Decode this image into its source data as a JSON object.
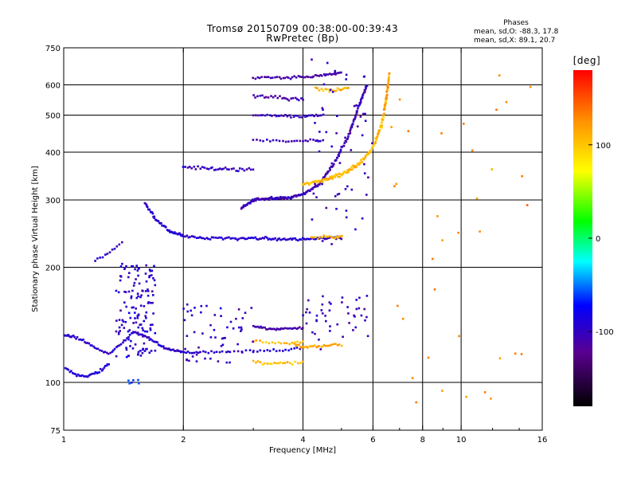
{
  "title_line1": "Tromsø 20150709 00:38:00-00:39:43",
  "title_line2": "RwPretec (Bp)",
  "phases": {
    "title": "Phases",
    "line_o": "mean, sd,O: -88.3, 17.8",
    "line_x": "mean, sd,X:  89.1, 20.7"
  },
  "colorbar": {
    "unit": "[deg]",
    "min": -180,
    "max": 180,
    "ticks": [
      {
        "value": 100,
        "label": "100"
      },
      {
        "value": 0,
        "label": "0"
      },
      {
        "value": -100,
        "label": "-100"
      }
    ]
  },
  "chart_data": {
    "type": "scatter",
    "x_scale": "log",
    "y_scale": "log",
    "xlabel": "Frequency [MHz]",
    "ylabel": "Stationary phase Virtual Height [km]",
    "xlim": [
      1,
      16
    ],
    "ylim": [
      75,
      750
    ],
    "grid": true,
    "x_ticks": [
      {
        "value": 1,
        "label": "1",
        "grid": false
      },
      {
        "value": 2,
        "label": "2",
        "grid": true
      },
      {
        "value": 4,
        "label": "4",
        "grid": true
      },
      {
        "value": 6,
        "label": "6",
        "grid": true
      },
      {
        "value": 8,
        "label": "8",
        "grid": true
      },
      {
        "value": 10,
        "label": "10",
        "grid": true
      },
      {
        "value": 16,
        "label": "16",
        "grid": false
      }
    ],
    "y_ticks": [
      {
        "value": 75,
        "label": "75",
        "grid": false
      },
      {
        "value": 100,
        "label": "100",
        "grid": true
      },
      {
        "value": 200,
        "label": "200",
        "grid": true
      },
      {
        "value": 300,
        "label": "300",
        "grid": true
      },
      {
        "value": 400,
        "label": "400",
        "grid": true
      },
      {
        "value": 500,
        "label": "500",
        "grid": true
      },
      {
        "value": 600,
        "label": "600",
        "grid": true
      },
      {
        "value": 750,
        "label": "750",
        "grid": false
      }
    ],
    "traces": [
      {
        "kind": "curve",
        "x": [
          1.0,
          1.05,
          1.12,
          1.2,
          1.3,
          1.4,
          1.5,
          1.6,
          1.7,
          1.8,
          1.9,
          2.0,
          2.2,
          2.5,
          3.0,
          3.5,
          4.0
        ],
        "y": [
          133,
          132,
          129,
          123,
          119,
          126,
          136,
          132,
          127,
          123,
          121,
          120,
          120,
          120,
          121,
          121,
          123
        ],
        "phase": -95,
        "n": 130,
        "jitter": 0.01
      },
      {
        "kind": "curve",
        "x": [
          1.0,
          1.05,
          1.1,
          1.15,
          1.2,
          1.25,
          1.3
        ],
        "y": [
          110,
          106,
          104,
          104,
          106,
          108,
          112
        ],
        "phase": -90,
        "n": 35,
        "jitter": 0.012
      },
      {
        "kind": "curve",
        "x": [
          3.8,
          4.0,
          4.3,
          4.6,
          5.0
        ],
        "y": [
          126,
          124,
          124,
          125,
          125
        ],
        "phase": 115,
        "n": 30,
        "jitter": 0.015
      },
      {
        "kind": "cloud",
        "x": [
          1.35,
          1.7
        ],
        "y": [
          115,
          205
        ],
        "phase": -95,
        "n": 140
      },
      {
        "kind": "cloud",
        "x": [
          1.45,
          1.55
        ],
        "y": [
          98,
          103
        ],
        "phase": -60,
        "n": 6
      },
      {
        "kind": "curve",
        "x": [
          1.6,
          1.7,
          1.85,
          2.0,
          2.3,
          2.7,
          3.1,
          3.5,
          4.0,
          4.5,
          5.0
        ],
        "y": [
          295,
          268,
          248,
          242,
          238,
          238,
          238,
          237,
          237,
          238,
          239
        ],
        "phase": -95,
        "n": 150,
        "jitter": 0.012
      },
      {
        "kind": "curve",
        "x": [
          4.2,
          4.5,
          4.8,
          5.0
        ],
        "y": [
          239,
          240,
          240,
          241
        ],
        "phase": 110,
        "n": 18,
        "jitter": 0.012
      },
      {
        "kind": "curve",
        "x": [
          1.2,
          1.3,
          1.4
        ],
        "y": [
          208,
          218,
          232
        ],
        "phase": -100,
        "n": 12,
        "jitter": 0.015
      },
      {
        "kind": "curve",
        "x": [
          2.8,
          3.0,
          3.3,
          3.6,
          4.0,
          4.4,
          4.8,
          5.2,
          5.5,
          5.8
        ],
        "y": [
          285,
          300,
          303,
          303,
          310,
          330,
          375,
          440,
          520,
          600
        ],
        "phase": -105,
        "n": 180,
        "jitter": 0.012
      },
      {
        "kind": "curve",
        "x": [
          4.0,
          4.5,
          5.0,
          5.5,
          6.0,
          6.3,
          6.5
        ],
        "y": [
          330,
          338,
          350,
          370,
          410,
          470,
          560
        ],
        "phase": 105,
        "n": 120,
        "jitter": 0.015
      },
      {
        "kind": "curve",
        "x": [
          6.4,
          6.5,
          6.55,
          6.6
        ],
        "y": [
          520,
          560,
          600,
          640
        ],
        "phase": 120,
        "n": 30,
        "jitter": 0.02
      },
      {
        "kind": "curve",
        "x": [
          3.0,
          3.5,
          4.0,
          4.5,
          5.0
        ],
        "y": [
          625,
          625,
          628,
          635,
          645
        ],
        "phase": -110,
        "n": 50,
        "jitter": 0.012
      },
      {
        "kind": "curve",
        "x": [
          3.0,
          3.5,
          4.0,
          4.5
        ],
        "y": [
          500,
          498,
          496,
          500
        ],
        "phase": -105,
        "n": 35,
        "jitter": 0.012
      },
      {
        "kind": "curve",
        "x": [
          3.0,
          3.5,
          4.0,
          4.5
        ],
        "y": [
          430,
          428,
          428,
          430
        ],
        "phase": -105,
        "n": 25,
        "jitter": 0.012
      },
      {
        "kind": "curve",
        "x": [
          3.0,
          3.5,
          4.0
        ],
        "y": [
          560,
          555,
          550
        ],
        "phase": -110,
        "n": 25,
        "jitter": 0.015
      },
      {
        "kind": "curve",
        "x": [
          4.3,
          4.8,
          5.2
        ],
        "y": [
          585,
          580,
          590
        ],
        "phase": 110,
        "n": 20,
        "jitter": 0.015
      },
      {
        "kind": "curve",
        "x": [
          2.0,
          2.3,
          2.6,
          3.0
        ],
        "y": [
          365,
          362,
          360,
          360
        ],
        "phase": -100,
        "n": 35,
        "jitter": 0.015
      },
      {
        "kind": "curve",
        "x": [
          3.0,
          3.3,
          3.6,
          4.0
        ],
        "y": [
          140,
          138,
          138,
          139
        ],
        "phase": -110,
        "n": 35,
        "jitter": 0.012
      },
      {
        "kind": "curve",
        "x": [
          3.0,
          3.3,
          3.6,
          4.0
        ],
        "y": [
          113,
          112,
          112,
          113
        ],
        "phase": 100,
        "n": 22,
        "jitter": 0.012
      },
      {
        "kind": "curve",
        "x": [
          3.0,
          3.5,
          4.0
        ],
        "y": [
          128,
          127,
          127
        ],
        "phase": 105,
        "n": 18,
        "jitter": 0.012
      },
      {
        "kind": "cloud",
        "x": [
          2.0,
          3.0
        ],
        "y": [
          110,
          160
        ],
        "phase": -100,
        "n": 55
      },
      {
        "kind": "cloud",
        "x": [
          4.0,
          6.0
        ],
        "y": [
          120,
          170
        ],
        "phase": -100,
        "n": 45
      },
      {
        "kind": "cloud",
        "x": [
          4.2,
          6.0
        ],
        "y": [
          230,
          700
        ],
        "phase": -100,
        "n": 60
      },
      {
        "kind": "cloud",
        "x": [
          6.5,
          15.0
        ],
        "y": [
          80,
          650
        ],
        "phase": 130,
        "n": 35
      }
    ]
  }
}
